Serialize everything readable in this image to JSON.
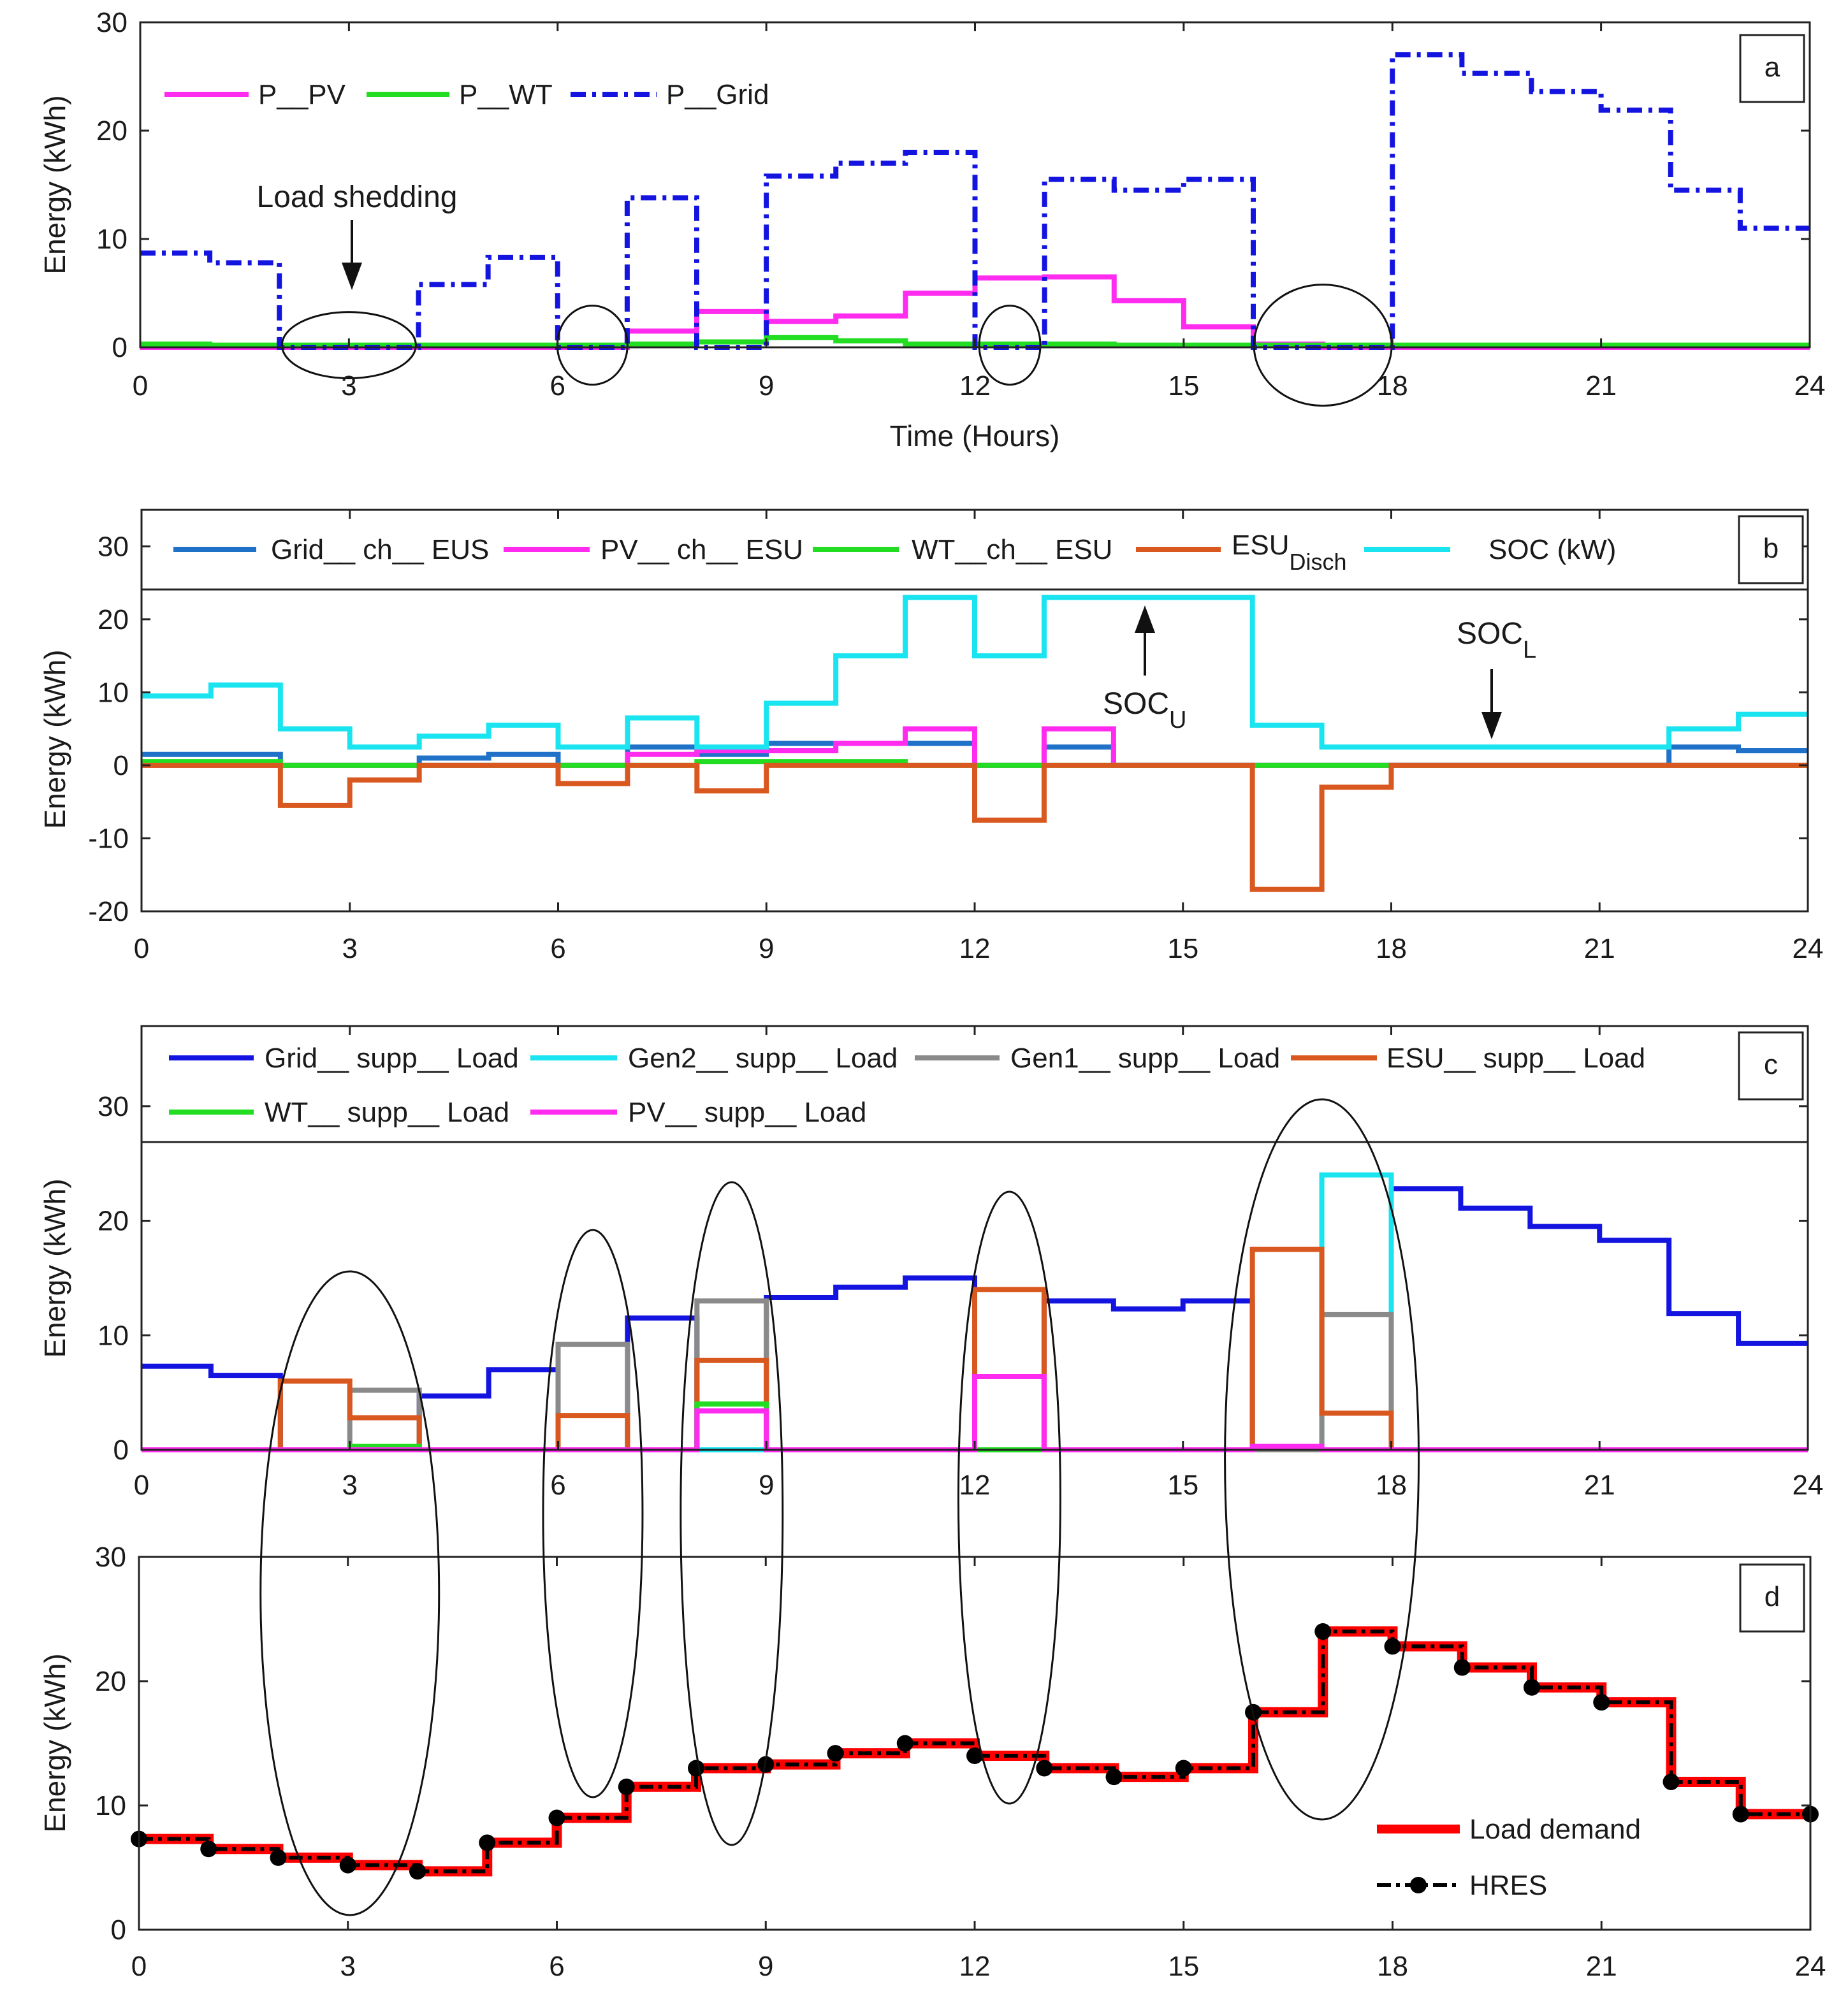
{
  "chart_data": [
    {
      "id": "a",
      "type": "line",
      "panel_label": "a",
      "xlabel": "Time (Hours)",
      "ylabel": "Energy (kWh)",
      "xlim": [
        0,
        24
      ],
      "ylim": [
        0,
        30
      ],
      "xticks": [
        0,
        3,
        6,
        9,
        12,
        15,
        18,
        21,
        24
      ],
      "yticks": [
        0,
        10,
        20,
        30
      ],
      "grid": false,
      "legend_position": "top-left",
      "x_edges": [
        0,
        1,
        2,
        3,
        4,
        5,
        6,
        7,
        8,
        9,
        10,
        11,
        12,
        13,
        14,
        15,
        16,
        17,
        18,
        19,
        20,
        21,
        22,
        23,
        24
      ],
      "series": [
        {
          "name": "P__PV",
          "color": "#ff2cf0",
          "style": "solid",
          "values": [
            0,
            0,
            0,
            0,
            0,
            0,
            0,
            1.5,
            3.3,
            2.4,
            2.9,
            5.0,
            6.4,
            6.5,
            4.3,
            1.9,
            0.3,
            0,
            0,
            0,
            0,
            0,
            0,
            0
          ]
        },
        {
          "name": "P__WT",
          "color": "#22dd22",
          "style": "solid",
          "values": [
            0.3,
            0.2,
            0.2,
            0.2,
            0.2,
            0.2,
            0.2,
            0.3,
            0.5,
            0.9,
            0.6,
            0.3,
            0.3,
            0.3,
            0.2,
            0.2,
            0.2,
            0.2,
            0.2,
            0.2,
            0.2,
            0.2,
            0.2,
            0.2
          ]
        },
        {
          "name": "P__Grid",
          "color": "#1414e0",
          "style": "dashdot",
          "values": [
            8.7,
            7.8,
            0,
            0,
            5.8,
            8.3,
            0,
            13.8,
            0,
            15.8,
            17.0,
            18.0,
            0,
            15.5,
            14.5,
            15.5,
            0,
            0,
            27.0,
            25.3,
            23.6,
            21.9,
            14.5,
            11.0
          ]
        }
      ],
      "annotations": [
        {
          "text": "Load shedding",
          "x": 3,
          "y": 14
        },
        {
          "type": "ellipse",
          "cx": 3.0,
          "cy": 0.2
        },
        {
          "type": "ellipse",
          "cx": 6.5,
          "cy": 0.2
        },
        {
          "type": "ellipse",
          "cx": 12.5,
          "cy": 0.2
        },
        {
          "type": "ellipse",
          "cx": 17.0,
          "cy": 0.2
        }
      ]
    },
    {
      "id": "b",
      "type": "line",
      "panel_label": "b",
      "xlabel": "",
      "ylabel": "Energy (kWh)",
      "xlim": [
        0,
        24
      ],
      "ylim": [
        -20,
        35
      ],
      "xticks": [
        0,
        3,
        6,
        9,
        12,
        15,
        18,
        21,
        24
      ],
      "yticks": [
        -20,
        -10,
        0,
        10,
        20,
        30
      ],
      "grid": false,
      "legend_position": "top",
      "x_edges": [
        0,
        1,
        2,
        3,
        4,
        5,
        6,
        7,
        8,
        9,
        10,
        11,
        12,
        13,
        14,
        15,
        16,
        17,
        18,
        19,
        20,
        21,
        22,
        23,
        24
      ],
      "series": [
        {
          "name": "Grid__ ch__ EUS",
          "color": "#1f72c8",
          "style": "solid",
          "values": [
            1.5,
            1.5,
            0,
            0,
            1.0,
            1.5,
            0,
            2.5,
            1.5,
            3.0,
            3.0,
            3.0,
            0,
            2.5,
            0,
            0,
            0,
            0,
            0,
            0,
            0,
            0,
            2.5,
            2.0
          ]
        },
        {
          "name": "PV__ ch__ ESU",
          "color": "#ff2cf0",
          "style": "solid",
          "values": [
            0,
            0,
            0,
            0,
            0,
            0,
            0,
            1.5,
            2.0,
            2.0,
            3.0,
            5.0,
            0,
            5.0,
            0,
            0,
            0,
            0,
            0,
            0,
            0,
            0,
            0,
            0
          ]
        },
        {
          "name": "WT__ch__ ESU",
          "color": "#22dd22",
          "style": "solid",
          "values": [
            0.5,
            0.5,
            0,
            0,
            0,
            0,
            0,
            0,
            0.5,
            0.5,
            0.5,
            0,
            0,
            0,
            0,
            0,
            0,
            0,
            0,
            0,
            0,
            0,
            0,
            0
          ]
        },
        {
          "name": "ESU",
          "name_subscript": "Disch",
          "color": "#d9581f",
          "style": "solid",
          "values": [
            0,
            0,
            -5.5,
            -2.0,
            0,
            0,
            -2.5,
            0,
            -3.5,
            0,
            0,
            0,
            -7.5,
            0,
            0,
            0,
            -17.0,
            -3.0,
            0,
            0,
            0,
            0,
            0,
            0
          ]
        },
        {
          "name": "SOC (kW)",
          "color": "#19e4f0",
          "style": "solid",
          "values": [
            9.5,
            11.0,
            5.0,
            2.5,
            4.0,
            5.5,
            2.5,
            6.5,
            2.5,
            8.5,
            15.0,
            23.0,
            15.0,
            23.0,
            23.0,
            23.0,
            5.5,
            2.5,
            2.5,
            2.5,
            2.5,
            2.5,
            5.0,
            7.0
          ]
        }
      ],
      "annotations": [
        {
          "text": "SOC",
          "subscript": "U",
          "x": 14.5,
          "y": 23
        },
        {
          "text": "SOC",
          "subscript": "L",
          "x": 19.5,
          "y": 2.5
        }
      ]
    },
    {
      "id": "c",
      "type": "line",
      "panel_label": "c",
      "xlabel": "",
      "ylabel": "Energy (kWh)",
      "xlim": [
        0,
        24
      ],
      "ylim": [
        0,
        37
      ],
      "xticks": [
        0,
        3,
        6,
        9,
        12,
        15,
        18,
        21,
        24
      ],
      "yticks": [
        0,
        10,
        20,
        30
      ],
      "grid": false,
      "legend_position": "top",
      "x_edges": [
        0,
        1,
        2,
        3,
        4,
        5,
        6,
        7,
        8,
        9,
        10,
        11,
        12,
        13,
        14,
        15,
        16,
        17,
        18,
        19,
        20,
        21,
        22,
        23,
        24
      ],
      "series": [
        {
          "name": "Grid__ supp__ Load",
          "color": "#1414e0",
          "style": "solid",
          "values": [
            7.3,
            6.5,
            0,
            0,
            4.7,
            7.0,
            0,
            11.5,
            0,
            13.3,
            14.2,
            15.0,
            0,
            13.0,
            12.3,
            13.0,
            0,
            0,
            22.8,
            21.1,
            19.5,
            18.3,
            11.9,
            9.3
          ]
        },
        {
          "name": "Gen2__ supp__ Load",
          "color": "#19e4f0",
          "style": "solid",
          "values": [
            0,
            0,
            0,
            0,
            0,
            0,
            0,
            0,
            0,
            0,
            0,
            0,
            0,
            0,
            0,
            0,
            0,
            24.0,
            0,
            0,
            0,
            0,
            0,
            0
          ]
        },
        {
          "name": "Gen1__ supp__ Load",
          "color": "#8a8a8a",
          "style": "solid",
          "values": [
            0,
            0,
            0,
            5.2,
            0,
            0,
            9.2,
            0,
            13.0,
            0,
            0,
            0,
            0,
            0,
            0,
            0,
            0,
            11.8,
            0,
            0,
            0,
            0,
            0,
            0
          ]
        },
        {
          "name": "ESU__ supp__ Load",
          "color": "#d9581f",
          "style": "solid",
          "values": [
            0,
            0,
            6.0,
            2.8,
            0,
            0,
            3.0,
            0,
            7.8,
            0,
            0,
            0,
            14.0,
            0,
            0,
            0,
            17.5,
            3.2,
            0,
            0,
            0,
            0,
            0,
            0
          ]
        },
        {
          "name": "WT__ supp__ Load",
          "color": "#22dd22",
          "style": "solid",
          "values": [
            0,
            0,
            0,
            0.3,
            0,
            0,
            0,
            0,
            4.0,
            0,
            0,
            0,
            0,
            0,
            0,
            0,
            0.2,
            0,
            0,
            0,
            0,
            0,
            0,
            0
          ]
        },
        {
          "name": "PV__ supp__ Load",
          "color": "#ff2cf0",
          "style": "solid",
          "values": [
            0,
            0,
            0,
            0,
            0,
            0,
            0,
            0,
            3.4,
            0,
            0,
            0,
            6.4,
            0,
            0,
            0,
            0.3,
            0,
            0,
            0,
            0,
            0,
            0,
            0
          ]
        }
      ],
      "annotations": [
        {
          "type": "ellipse",
          "cx": 3.0
        },
        {
          "type": "ellipse",
          "cx": 6.5
        },
        {
          "type": "ellipse",
          "cx": 8.5
        },
        {
          "type": "ellipse",
          "cx": 12.5
        },
        {
          "type": "ellipse",
          "cx": 17.0
        }
      ]
    },
    {
      "id": "d",
      "type": "line",
      "panel_label": "d",
      "xlabel": "",
      "ylabel": "Energy (kWh)",
      "xlim": [
        0,
        24
      ],
      "ylim": [
        0,
        30
      ],
      "xticks": [
        0,
        3,
        6,
        9,
        12,
        15,
        18,
        21,
        24
      ],
      "yticks": [
        0,
        10,
        20,
        30
      ],
      "grid": false,
      "legend_position": "bottom-right",
      "x_edges": [
        0,
        1,
        2,
        3,
        4,
        5,
        6,
        7,
        8,
        9,
        10,
        11,
        12,
        13,
        14,
        15,
        16,
        17,
        18,
        19,
        20,
        21,
        22,
        23,
        24
      ],
      "series": [
        {
          "name": "Load demand",
          "color": "#ff0000",
          "style": "solid",
          "values": [
            7.3,
            6.5,
            5.8,
            5.2,
            4.7,
            7.0,
            9.0,
            11.5,
            13.0,
            13.3,
            14.2,
            15.0,
            14.0,
            13.0,
            12.3,
            13.0,
            17.5,
            24.0,
            22.8,
            21.1,
            19.5,
            18.3,
            11.9,
            9.3
          ]
        },
        {
          "name": "HRES",
          "color": "#000000",
          "style": "dashdot-marker",
          "values": [
            7.3,
            6.5,
            5.8,
            5.2,
            4.7,
            7.0,
            9.0,
            11.5,
            13.0,
            13.3,
            14.2,
            15.0,
            14.0,
            13.0,
            12.3,
            13.0,
            17.5,
            24.0,
            22.8,
            21.1,
            19.5,
            18.3,
            11.9,
            9.3
          ]
        }
      ],
      "annotations": [
        {
          "type": "ellipse",
          "cx": 3.0
        },
        {
          "type": "ellipse",
          "cx": 6.5
        },
        {
          "type": "ellipse",
          "cx": 8.5
        },
        {
          "type": "ellipse",
          "cx": 12.5
        },
        {
          "type": "ellipse",
          "cx": 17.0
        }
      ]
    }
  ]
}
